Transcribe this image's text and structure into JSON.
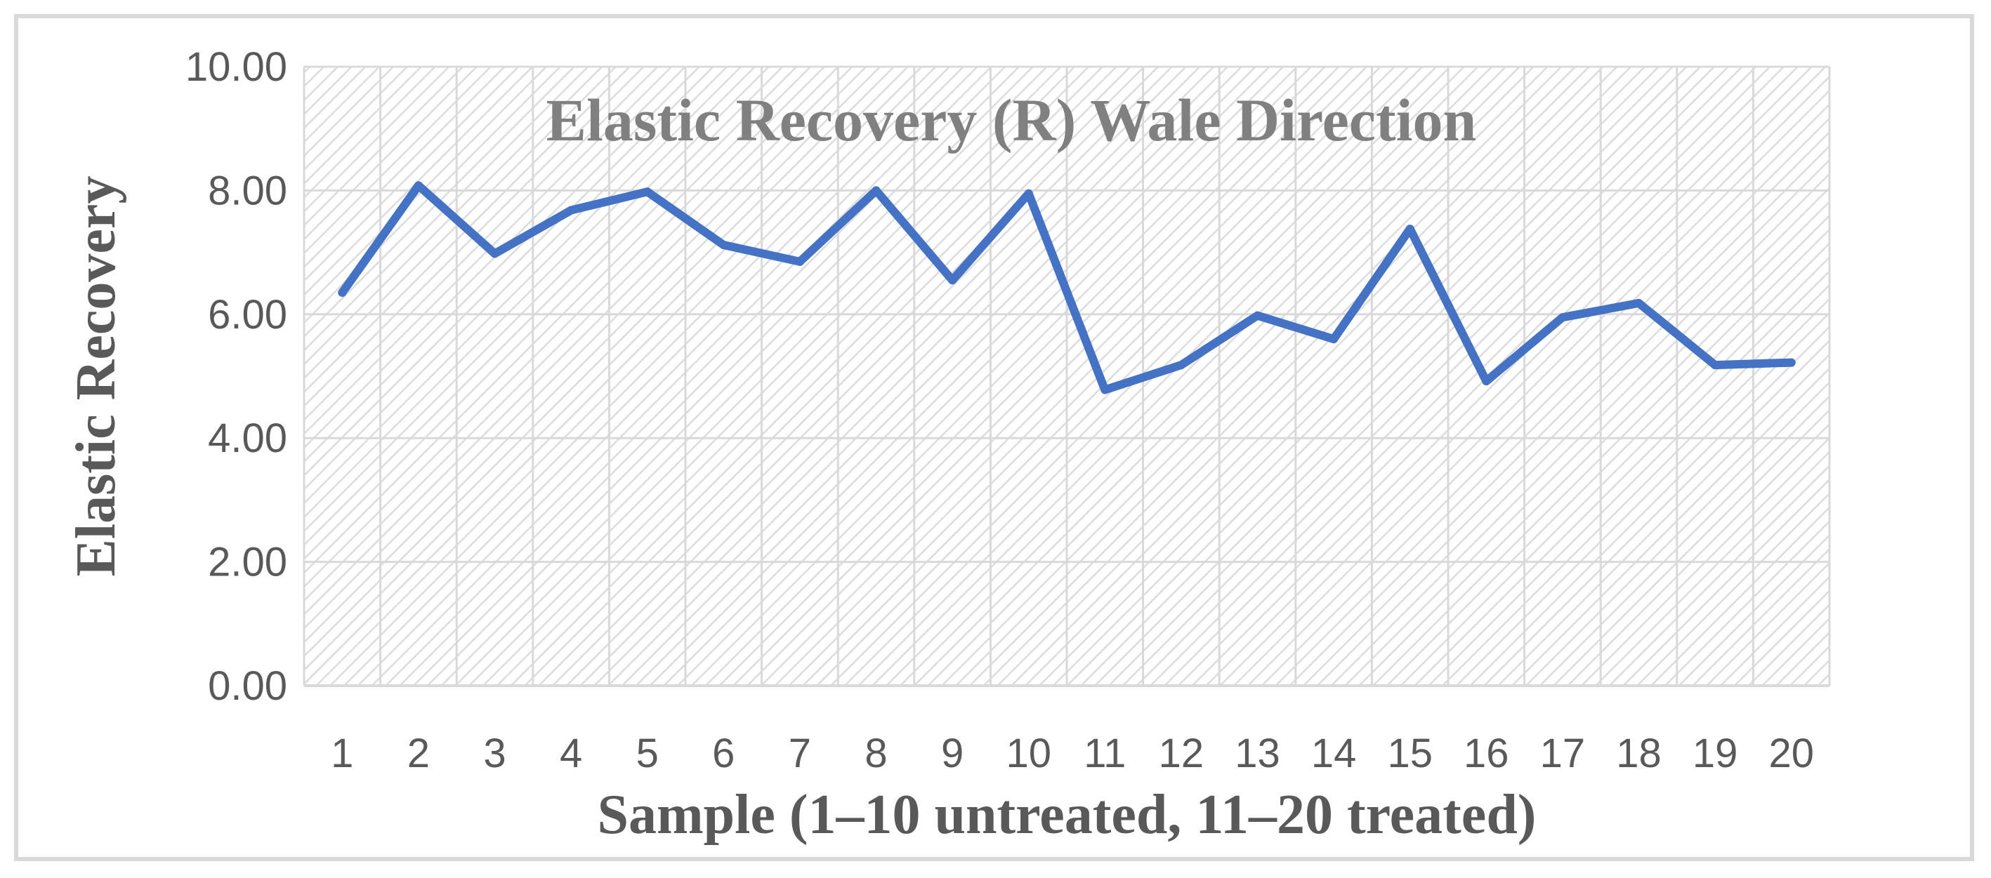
{
  "chart_data": {
    "type": "line",
    "title": "Elastic Recovery (R) Wale Direction",
    "xlabel": "Sample (1–10 untreated, 11–20 treated)",
    "ylabel": "Elastic Recovery",
    "categories": [
      "1",
      "2",
      "3",
      "4",
      "5",
      "6",
      "7",
      "8",
      "9",
      "10",
      "11",
      "12",
      "13",
      "14",
      "15",
      "16",
      "17",
      "18",
      "19",
      "20"
    ],
    "series": [
      {
        "name": "",
        "values": [
          6.35,
          8.08,
          6.98,
          7.68,
          7.98,
          7.12,
          6.85,
          8.0,
          6.55,
          7.95,
          4.78,
          5.18,
          5.98,
          5.6,
          7.38,
          4.92,
          5.95,
          6.18,
          5.18,
          5.22
        ]
      }
    ],
    "yticks": [
      "0.00",
      "2.00",
      "4.00",
      "6.00",
      "8.00",
      "10.00"
    ],
    "ylim": [
      0,
      10
    ],
    "grid": true,
    "legend": "none",
    "line_color": "#4472c4",
    "grid_color": "#d9d9d9",
    "plot_pattern": "diagonal-hatch"
  }
}
